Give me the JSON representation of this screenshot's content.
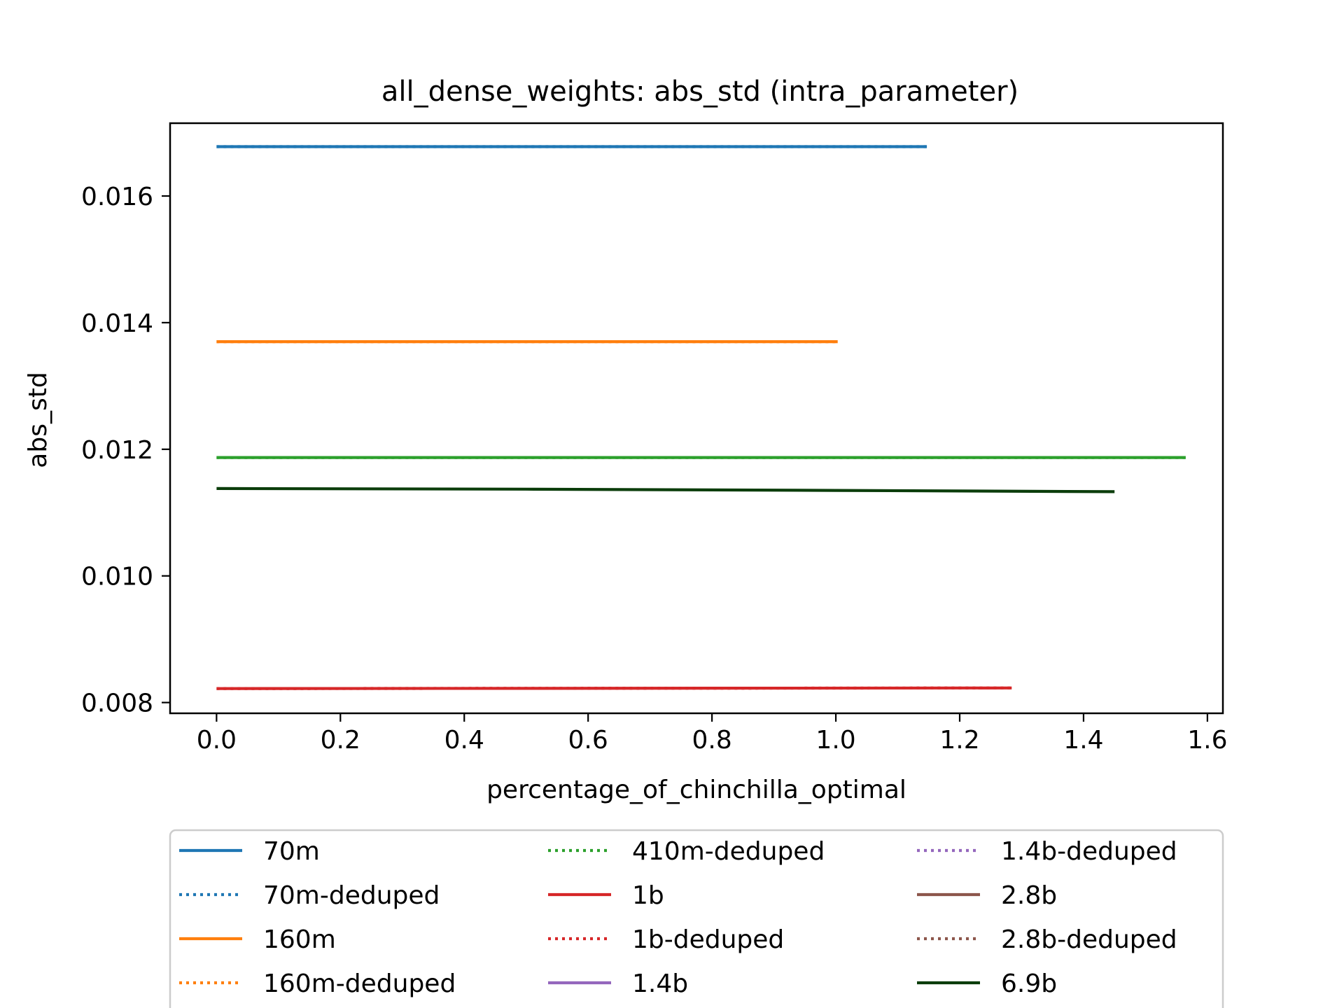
{
  "chart_data": {
    "type": "line",
    "title": "all_dense_weights: abs_std (intra_parameter)",
    "xlabel": "percentage_of_chinchilla_optimal",
    "ylabel": "abs_std",
    "xlim": [
      -0.075,
      1.625
    ],
    "ylim": [
      0.00783,
      0.01715
    ],
    "xticks": [
      0.0,
      0.2,
      0.4,
      0.6,
      0.8,
      1.0,
      1.2,
      1.4,
      1.6
    ],
    "xtick_labels": [
      "0.0",
      "0.2",
      "0.4",
      "0.6",
      "0.8",
      "1.0",
      "1.2",
      "1.4",
      "1.6"
    ],
    "yticks": [
      0.008,
      0.01,
      0.012,
      0.014,
      0.016
    ],
    "ytick_labels": [
      "0.008",
      "0.010",
      "0.012",
      "0.014",
      "0.016"
    ],
    "grid": false,
    "legend_placement": "below plot, 3 columns",
    "series": [
      {
        "name": "70m",
        "color": "#1f77b4",
        "style": "solid",
        "x": [
          0.0,
          1.147
        ],
        "y": [
          0.01678,
          0.01678
        ]
      },
      {
        "name": "70m-deduped",
        "color": "#1f77b4",
        "style": "dotted",
        "x": [
          0.0,
          1.147
        ],
        "y": [
          0.01678,
          0.01678
        ]
      },
      {
        "name": "160m",
        "color": "#ff7f0e",
        "style": "solid",
        "x": [
          0.0,
          1.003
        ],
        "y": [
          0.0137,
          0.0137
        ]
      },
      {
        "name": "160m-deduped",
        "color": "#ff7f0e",
        "style": "dotted",
        "x": [
          0.0,
          1.003
        ],
        "y": [
          0.0137,
          0.0137
        ]
      },
      {
        "name": "410m-deduped",
        "color": "#2ca02c",
        "style": "dotted",
        "x": [
          0.0,
          1.565
        ],
        "y": [
          0.01187,
          0.01187
        ]
      },
      {
        "name": "1b",
        "color": "#d62728",
        "style": "solid",
        "x": [
          0.0,
          1.284
        ],
        "y": [
          0.00822,
          0.00823
        ]
      },
      {
        "name": "1b-deduped",
        "color": "#d62728",
        "style": "dotted",
        "x": [
          0.0,
          1.284
        ],
        "y": [
          0.00822,
          0.00823
        ]
      },
      {
        "name": "1.4b",
        "color": "#9467bd",
        "style": "solid",
        "x": [],
        "y": []
      },
      {
        "name": "1.4b-deduped",
        "color": "#9467bd",
        "style": "dotted",
        "x": [],
        "y": []
      },
      {
        "name": "2.8b",
        "color": "#8c564b",
        "style": "solid",
        "x": [],
        "y": []
      },
      {
        "name": "2.8b-deduped",
        "color": "#8c564b",
        "style": "dotted",
        "x": [],
        "y": []
      },
      {
        "name": "6.9b",
        "color": "#0b3d0b",
        "style": "solid",
        "x": [
          0.0,
          0.5,
          1.0,
          1.45
        ],
        "y": [
          0.01138,
          0.01137,
          0.01135,
          0.01133
        ]
      }
    ],
    "extra_lines": [
      {
        "color": "#2ca02c",
        "style": "solid",
        "x": [
          0.0,
          1.565
        ],
        "y": [
          0.01187,
          0.01187
        ]
      }
    ]
  }
}
